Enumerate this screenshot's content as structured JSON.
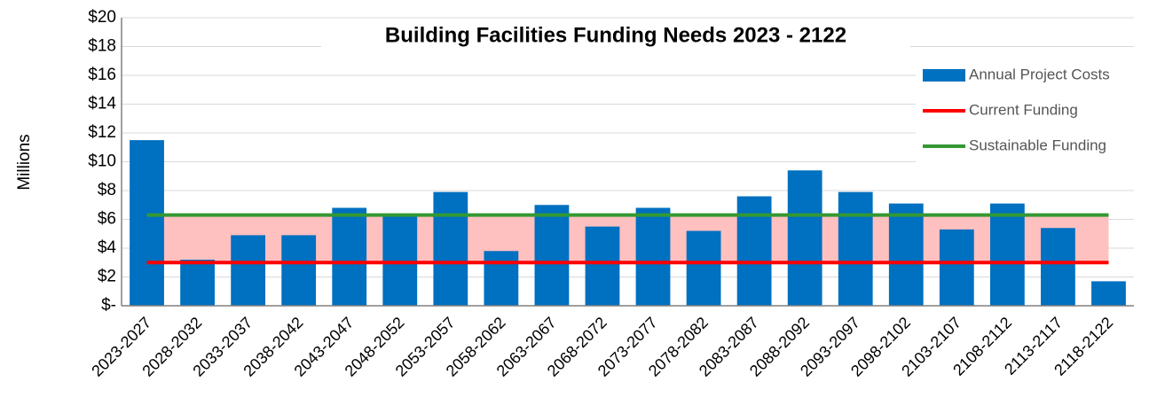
{
  "chart_data": {
    "type": "bar",
    "title": "Building Facilities Funding Needs 2023 - 2122",
    "y_label": "Millions",
    "categories": [
      "2023-2027",
      "2028-2032",
      "2033-2037",
      "2038-2042",
      "2043-2047",
      "2048-2052",
      "2053-2057",
      "2058-2062",
      "2063-2067",
      "2068-2072",
      "2073-2077",
      "2078-2082",
      "2083-2087",
      "2088-2092",
      "2093-2097",
      "2098-2102",
      "2103-2107",
      "2108-2112",
      "2113-2117",
      "2118-2122"
    ],
    "series": [
      {
        "name": "Annual Project Costs",
        "type": "bar",
        "color": "#0070c0",
        "values": [
          11.5,
          3.2,
          4.9,
          4.9,
          6.8,
          6.3,
          7.9,
          3.8,
          7.0,
          5.5,
          6.8,
          5.2,
          7.6,
          9.4,
          7.9,
          7.1,
          5.3,
          7.1,
          5.4,
          1.7
        ]
      },
      {
        "name": "Current Funding",
        "type": "line",
        "color": "#ff0000",
        "values": [
          3,
          3,
          3,
          3,
          3,
          3,
          3,
          3,
          3,
          3,
          3,
          3,
          3,
          3,
          3,
          3,
          3,
          3,
          3,
          3
        ]
      },
      {
        "name": "Sustainable Funding",
        "type": "line",
        "color": "#339933",
        "values": [
          6.3,
          6.3,
          6.3,
          6.3,
          6.3,
          6.3,
          6.3,
          6.3,
          6.3,
          6.3,
          6.3,
          6.3,
          6.3,
          6.3,
          6.3,
          6.3,
          6.3,
          6.3,
          6.3,
          6.3
        ]
      }
    ],
    "band_color": "#ffc0c0",
    "ylim": [
      0,
      20
    ],
    "yticks": [
      {
        "value": 0,
        "label": "$-"
      },
      {
        "value": 2,
        "label": "$2"
      },
      {
        "value": 4,
        "label": "$4"
      },
      {
        "value": 6,
        "label": "$6"
      },
      {
        "value": 8,
        "label": "$8"
      },
      {
        "value": 10,
        "label": "$10"
      },
      {
        "value": 12,
        "label": "$12"
      },
      {
        "value": 14,
        "label": "$14"
      },
      {
        "value": 16,
        "label": "$16"
      },
      {
        "value": 18,
        "label": "$18"
      },
      {
        "value": 20,
        "label": "$20"
      }
    ],
    "grid": true,
    "legend": "upper right"
  }
}
